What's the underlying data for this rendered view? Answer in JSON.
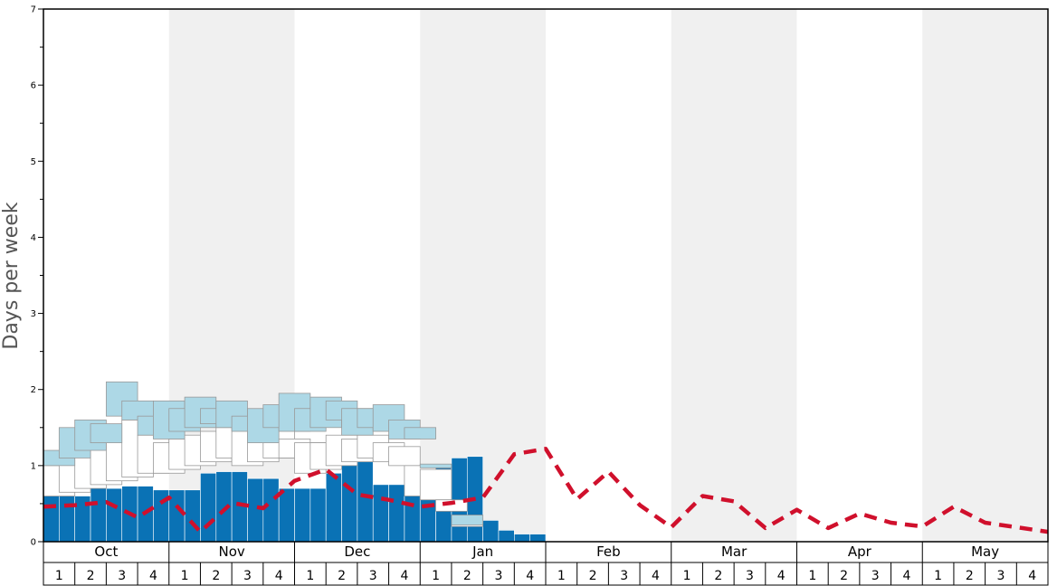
{
  "chart_data": {
    "type": "bar",
    "ylabel": "Days per week",
    "ylim": [
      0,
      7
    ],
    "yticks": [
      0,
      1,
      2,
      3,
      4,
      5,
      6,
      7
    ],
    "months": [
      "Oct",
      "Nov",
      "Dec",
      "Jan",
      "Feb",
      "Mar",
      "Apr",
      "May"
    ],
    "weeks_per_month": [
      "1",
      "2",
      "3",
      "4"
    ],
    "shaded_months": [
      "Nov",
      "Jan",
      "Mar",
      "May"
    ],
    "colors": {
      "observed_bar": "#0a72b5",
      "range_box": "#ffffff",
      "upper_box": "#add8e6",
      "average_line": "#d0102c",
      "shade": "#f0f0f0"
    },
    "series": [
      {
        "kind": "observed",
        "values": [
          0.6,
          0.6,
          0.6,
          0.7,
          0.7,
          0.73,
          0.73,
          0.68,
          0.68,
          0.68,
          0.9,
          0.92,
          0.92,
          0.83,
          0.83,
          0.7,
          0.7,
          0.7,
          0.9,
          1.05,
          1.18,
          0.75,
          0.75,
          0.75,
          1.02,
          1.02,
          1.1,
          1.12,
          0.28,
          0.15,
          0.1,
          0.1
        ]
      },
      {
        "kind": "range",
        "boxes": [
          [
            0,
            0.6,
            1.0
          ],
          [
            0.5,
            0.65,
            1.1
          ],
          [
            1,
            0.7,
            1.2
          ],
          [
            1.5,
            0.75,
            1.3
          ],
          [
            2,
            0.8,
            1.5
          ],
          [
            2.5,
            0.85,
            1.6
          ],
          [
            3,
            0.9,
            1.4
          ],
          [
            3.5,
            0.9,
            1.3
          ],
          [
            4,
            0.95,
            1.35
          ],
          [
            4.5,
            1.0,
            1.4
          ],
          [
            5,
            1.05,
            1.45
          ],
          [
            5.5,
            1.1,
            1.5
          ],
          [
            6,
            1.0,
            1.5
          ],
          [
            6.5,
            1.05,
            1.55
          ],
          [
            7,
            1.1,
            1.5
          ],
          [
            7.5,
            1.1,
            1.35
          ],
          [
            8,
            0.9,
            1.3
          ],
          [
            8.5,
            0.95,
            1.3
          ],
          [
            9,
            1.0,
            1.4
          ],
          [
            9.5,
            1.05,
            1.35
          ],
          [
            10,
            1.1,
            1.4
          ],
          [
            10.5,
            1.05,
            1.3
          ],
          [
            11,
            1.0,
            1.25
          ],
          [
            11.5,
            0.6,
            1.0
          ],
          [
            12,
            0.55,
            0.95
          ],
          [
            12.5,
            0.4,
            0.55
          ],
          [
            13,
            0.2,
            0.3
          ]
        ]
      },
      {
        "kind": "upper",
        "boxes": [
          [
            0,
            1.0,
            1.2
          ],
          [
            0.5,
            1.1,
            1.5
          ],
          [
            1,
            1.2,
            1.6
          ],
          [
            1.5,
            1.3,
            1.55
          ],
          [
            2,
            1.65,
            2.1
          ],
          [
            2.5,
            1.6,
            1.85
          ],
          [
            3,
            1.4,
            1.65
          ],
          [
            3.5,
            1.35,
            1.85
          ],
          [
            4,
            1.45,
            1.75
          ],
          [
            4.5,
            1.5,
            1.9
          ],
          [
            5,
            1.55,
            1.75
          ],
          [
            5.5,
            1.5,
            1.85
          ],
          [
            6,
            1.45,
            1.65
          ],
          [
            6.5,
            1.3,
            1.75
          ],
          [
            7,
            1.5,
            1.8
          ],
          [
            7.5,
            1.45,
            1.95
          ],
          [
            8,
            1.45,
            1.75
          ],
          [
            8.5,
            1.5,
            1.9
          ],
          [
            9,
            1.6,
            1.85
          ],
          [
            9.5,
            1.4,
            1.75
          ],
          [
            10,
            1.5,
            1.75
          ],
          [
            10.5,
            1.45,
            1.8
          ],
          [
            11,
            1.35,
            1.6
          ],
          [
            11.5,
            1.35,
            1.5
          ],
          [
            12,
            0.97,
            1.02
          ],
          [
            13,
            0.22,
            0.35
          ]
        ]
      },
      {
        "kind": "average",
        "values": [
          0.46,
          0.48,
          0.52,
          0.32,
          0.58,
          0.13,
          0.51,
          0.44,
          0.8,
          0.95,
          0.62,
          0.55,
          0.46,
          0.51,
          0.58,
          1.15,
          1.22,
          0.56,
          0.92,
          0.48,
          0.19,
          0.6,
          0.53,
          0.18,
          0.42,
          0.18,
          0.37,
          0.25,
          0.2,
          0.46,
          0.25,
          0.19,
          0.13
        ]
      }
    ]
  }
}
